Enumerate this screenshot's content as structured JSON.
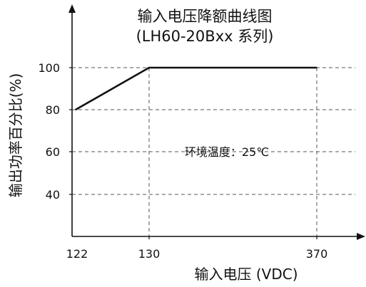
{
  "chart_data": {
    "type": "line",
    "title": "输入电压降额曲线图",
    "subtitle": "(LH60-20Bxx 系列)",
    "xlabel": "输入电压 (VDC)",
    "ylabel": "输出功率百分比(%)",
    "x": [
      122,
      130,
      370
    ],
    "series": [
      {
        "values": [
          80,
          100,
          100
        ]
      }
    ],
    "x_ticks": [
      122,
      130,
      370
    ],
    "x_tick_labels": [
      "122",
      "130",
      "370"
    ],
    "y_ticks": [
      40,
      60,
      80,
      100
    ],
    "y_tick_labels": [
      "40",
      "60",
      "80",
      "100"
    ],
    "annotation": "环境温度：25℃",
    "grid": "dashed",
    "colors": {
      "line": "#111111",
      "grid": "#555555",
      "axis": "#111111"
    }
  }
}
